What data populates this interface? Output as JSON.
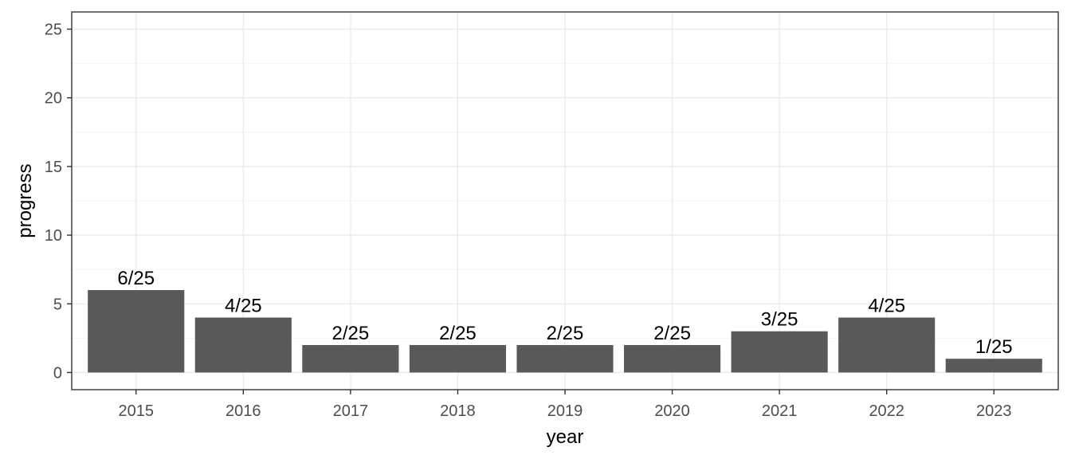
{
  "chart_data": {
    "type": "bar",
    "title": "",
    "xlabel": "year",
    "ylabel": "progress",
    "categories": [
      "2015",
      "2016",
      "2017",
      "2018",
      "2019",
      "2020",
      "2021",
      "2022",
      "2023"
    ],
    "values": [
      6,
      4,
      2,
      2,
      2,
      2,
      3,
      4,
      1
    ],
    "data_labels": [
      "6/25",
      "4/25",
      "2/25",
      "2/25",
      "2/25",
      "2/25",
      "3/25",
      "4/25",
      "1/25"
    ],
    "ylim": [
      -1.25,
      26.25
    ],
    "yticks": [
      0,
      5,
      10,
      15,
      20,
      25
    ],
    "grid": true,
    "legend": "none",
    "colors": {
      "bar": "#595959",
      "background": "#ffffff",
      "grid": "#ebebeb",
      "border": "#333333"
    }
  }
}
